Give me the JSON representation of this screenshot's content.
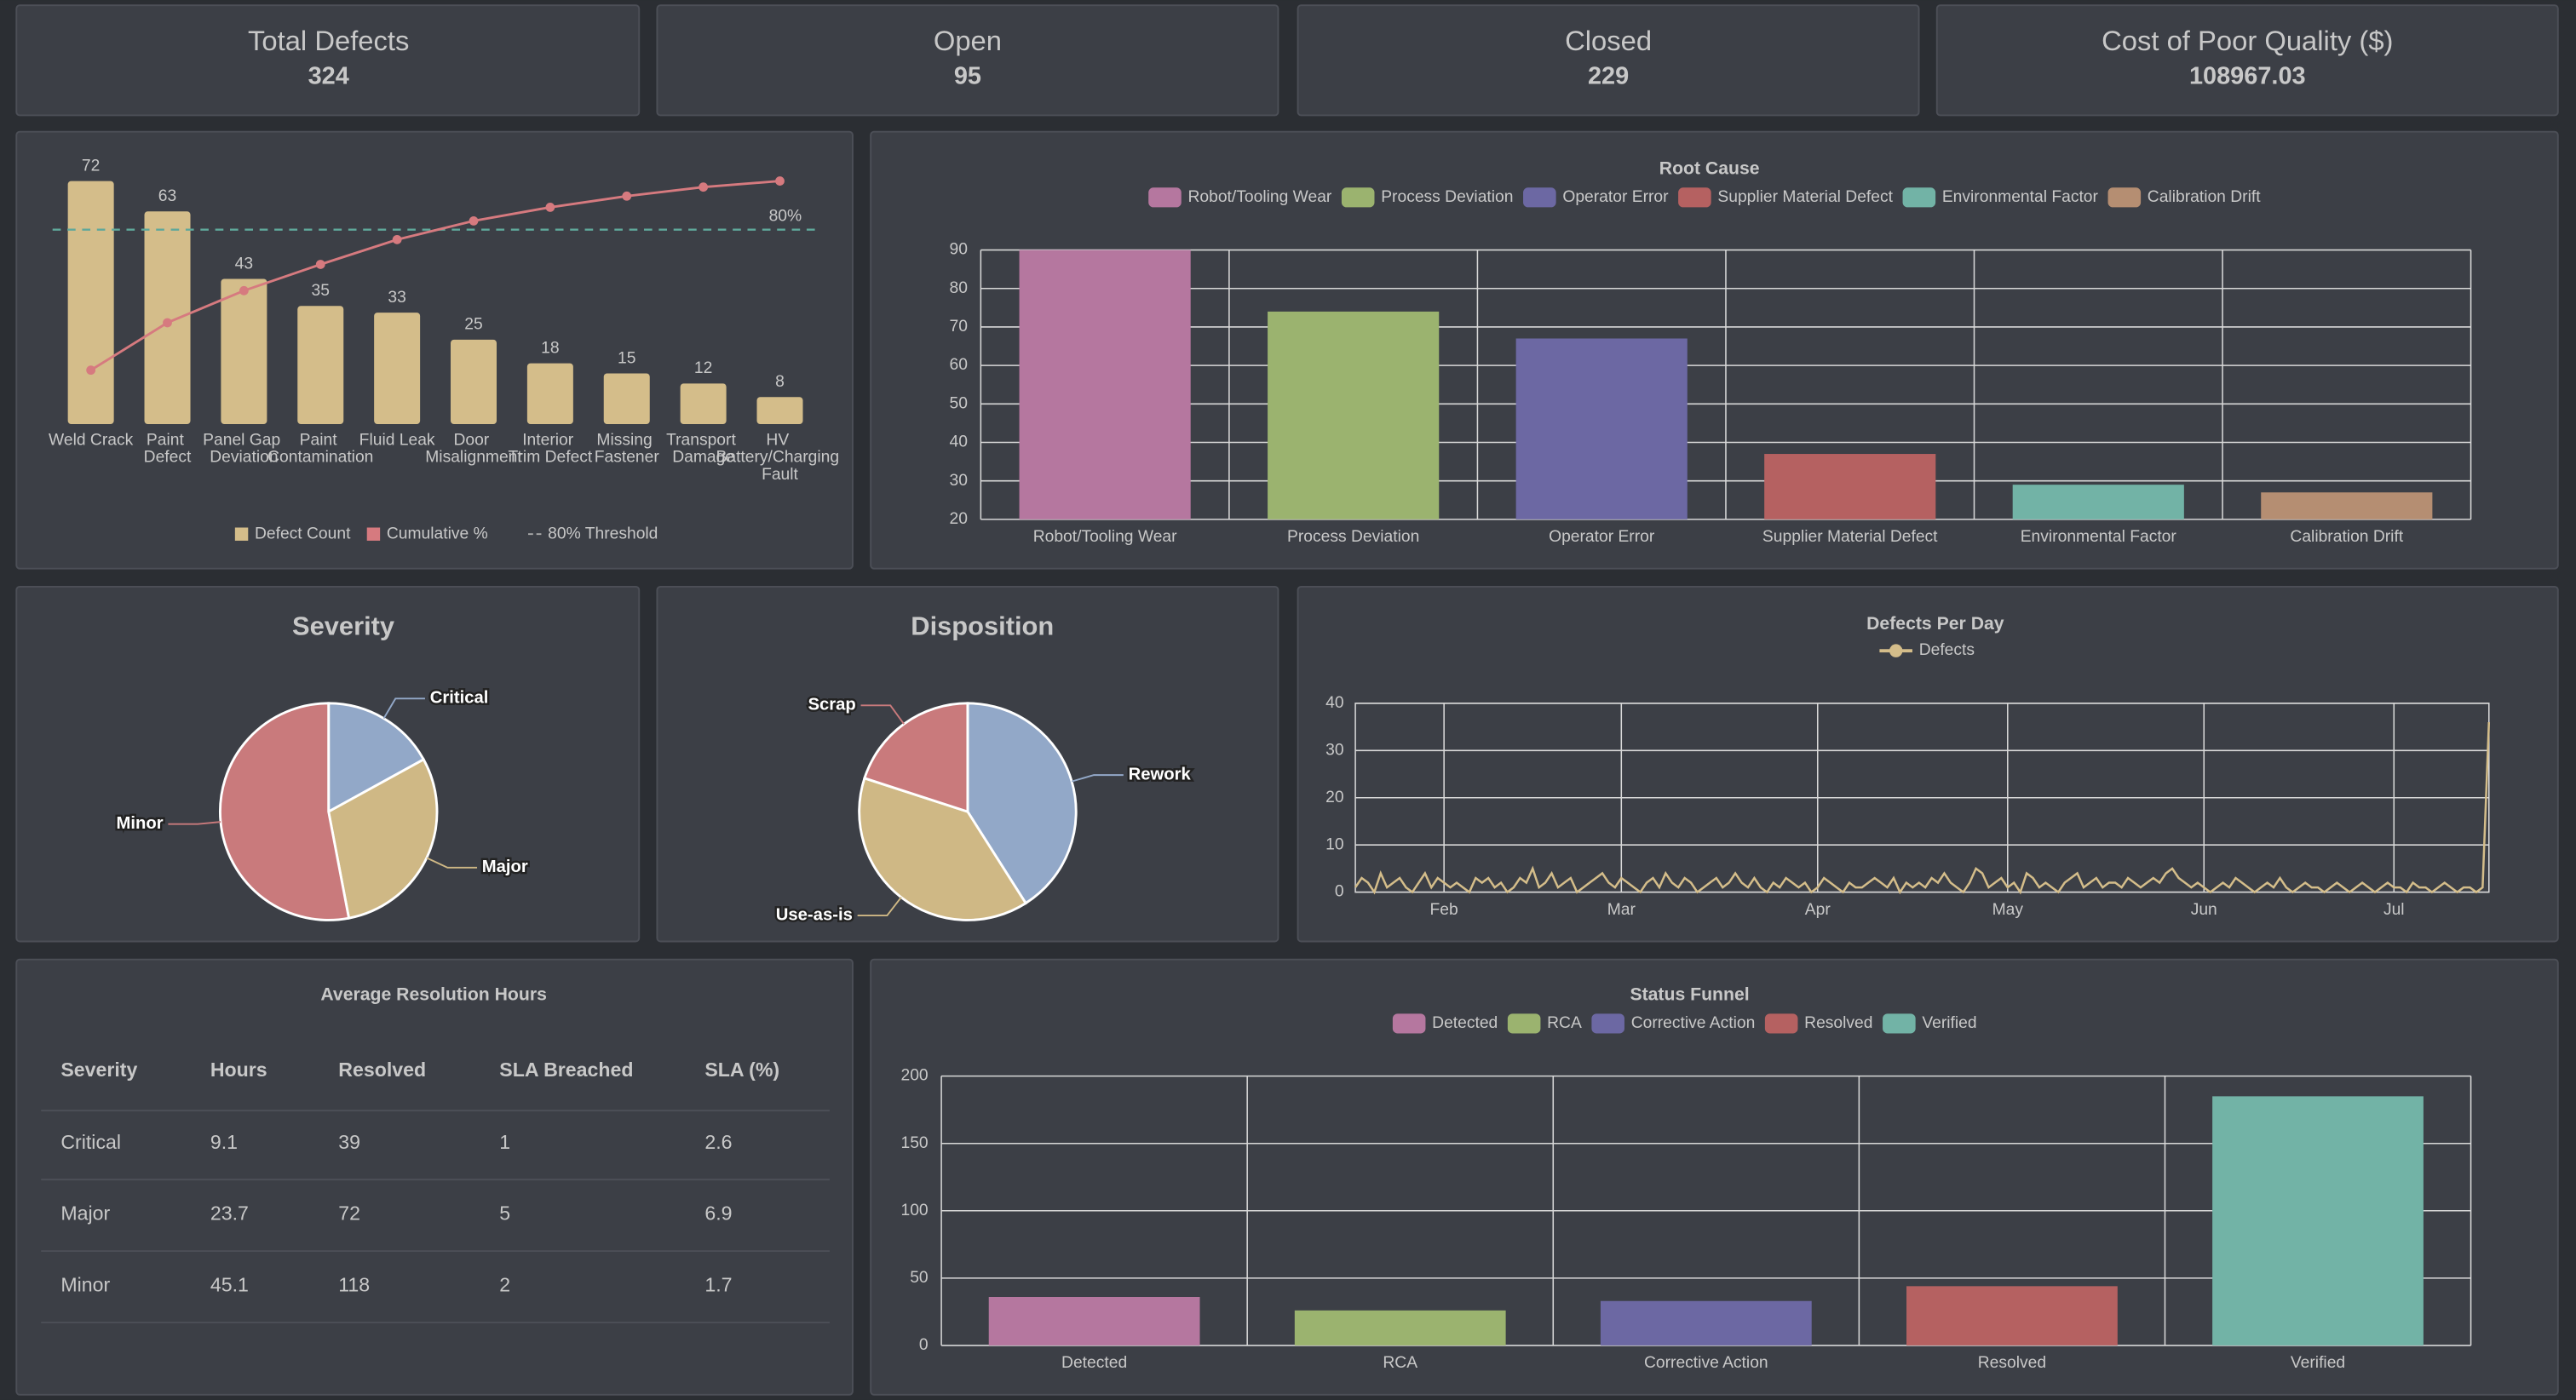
{
  "kpis": [
    {
      "label": "Total Defects",
      "value": 324
    },
    {
      "label": "Open",
      "value": 95
    },
    {
      "label": "Closed",
      "value": 229
    },
    {
      "label": "Cost of Poor Quality ($)",
      "value": 108967.03
    }
  ],
  "chart_data": [
    {
      "type": "pareto",
      "categories": [
        "Weld Crack",
        "Paint Defect",
        "Panel Gap Deviation",
        "Paint Contamination",
        "Fluid Leak",
        "Door Misalignment",
        "Interior Trim Defect",
        "Missing Fastener",
        "Transport Damage",
        "HV Battery/Charging Fault"
      ],
      "series": [
        {
          "name": "Defect Count",
          "color": "#d4bd8a",
          "values": [
            72,
            63,
            43,
            35,
            33,
            25,
            18,
            15,
            12,
            8
          ]
        },
        {
          "name": "Cumulative %",
          "color": "#d67a7f",
          "axis": "y2",
          "values": [
            22.2,
            41.7,
            54.9,
            65.7,
            75.9,
            83.6,
            89.2,
            93.8,
            97.5,
            100
          ]
        }
      ],
      "threshold": {
        "name": "80% Threshold",
        "value": 80,
        "label": "80%",
        "color": "#5fa89a"
      },
      "ylim": [
        0,
        72
      ],
      "y2lim": [
        0,
        100
      ]
    },
    {
      "type": "bar",
      "title": "Root Cause",
      "categories": [
        "Robot/Tooling Wear",
        "Process Deviation",
        "Operator Error",
        "Supplier Material Defect",
        "Environmental Factor",
        "Calibration Drift"
      ],
      "values": [
        90,
        74,
        67,
        37,
        29,
        27
      ],
      "colors": [
        "#b5779f",
        "#9bb36f",
        "#6c68a3",
        "#b56161",
        "#72b3a6",
        "#b58e72"
      ],
      "ylim": [
        20,
        90
      ],
      "yticks": [
        20,
        30,
        40,
        50,
        60,
        70,
        80,
        90
      ],
      "grid": true
    },
    {
      "type": "pie",
      "title": "Severity",
      "categories": [
        "Critical",
        "Major",
        "Minor"
      ],
      "values": [
        17,
        30,
        53
      ],
      "colors": [
        "#92a8c8",
        "#cfb885",
        "#c97a7c"
      ]
    },
    {
      "type": "pie",
      "title": "Disposition",
      "categories": [
        "Rework",
        "Use-as-is",
        "Scrap"
      ],
      "values": [
        41,
        39,
        20
      ],
      "colors": [
        "#92a8c8",
        "#cfb885",
        "#c97a7c"
      ]
    },
    {
      "type": "line",
      "title": "Defects Per Day",
      "x": [
        18,
        19,
        20,
        21,
        22,
        23,
        24,
        25,
        26,
        27,
        28,
        29,
        30,
        31,
        32,
        33,
        34,
        35,
        36,
        37,
        38,
        39,
        40,
        41,
        42,
        43,
        44,
        45,
        46,
        47,
        48,
        49,
        50,
        51,
        52,
        53,
        54,
        55,
        56,
        57,
        58,
        59,
        60,
        61,
        62,
        63,
        64,
        65,
        66,
        67,
        68,
        69,
        70,
        71,
        72,
        73,
        74,
        75,
        76,
        77,
        78,
        79,
        80,
        81,
        82,
        83,
        84,
        85,
        86,
        87,
        88,
        89,
        90,
        91,
        92,
        93,
        94,
        95,
        96,
        97,
        98,
        99,
        100,
        101,
        102,
        103,
        104,
        105,
        106,
        107,
        108,
        109,
        110,
        111,
        112,
        113,
        114,
        115,
        116,
        117,
        118,
        119,
        120,
        121,
        122,
        123,
        124,
        125,
        126,
        127,
        128,
        129,
        130,
        131,
        132,
        133,
        134,
        135,
        136,
        137,
        138,
        139,
        140,
        141,
        142,
        143,
        144,
        145,
        146,
        147,
        148,
        149,
        150,
        151,
        152,
        153,
        154,
        155,
        156,
        157,
        158,
        159,
        160,
        161,
        162,
        163,
        164,
        165,
        166,
        167,
        168,
        169,
        170,
        171,
        172,
        173,
        174,
        175,
        176,
        177,
        178,
        179,
        180,
        181,
        182,
        183,
        184,
        185,
        186,
        187,
        188,
        189,
        190,
        191,
        192,
        193,
        194,
        195,
        196,
        197
      ],
      "series": [
        {
          "name": "Defects",
          "color": "#d4bd8a",
          "values": [
            1,
            3,
            2,
            0,
            4,
            1,
            2,
            3,
            1,
            0,
            2,
            4,
            1,
            3,
            2,
            1,
            2,
            1,
            0,
            3,
            2,
            3,
            1,
            2,
            0,
            1,
            3,
            2,
            5,
            1,
            2,
            4,
            1,
            2,
            3,
            0,
            1,
            2,
            3,
            4,
            2,
            1,
            3,
            2,
            1,
            0,
            2,
            3,
            1,
            4,
            2,
            1,
            3,
            2,
            0,
            1,
            2,
            3,
            1,
            2,
            4,
            2,
            1,
            3,
            1,
            0,
            2,
            1,
            3,
            2,
            1,
            2,
            0,
            1,
            3,
            2,
            1,
            0,
            2,
            1,
            1,
            2,
            3,
            2,
            1,
            3,
            0,
            2,
            1,
            2,
            1,
            3,
            2,
            4,
            2,
            1,
            0,
            2,
            5,
            4,
            1,
            2,
            3,
            1,
            2,
            0,
            4,
            3,
            1,
            2,
            1,
            0,
            2,
            3,
            4,
            1,
            2,
            3,
            1,
            2,
            2,
            1,
            3,
            2,
            1,
            2,
            3,
            2,
            4,
            5,
            3,
            2,
            1,
            2,
            1,
            0,
            1,
            2,
            1,
            3,
            2,
            1,
            0,
            1,
            2,
            1,
            3,
            1,
            0,
            1,
            2,
            1,
            1,
            0,
            1,
            2,
            1,
            0,
            1,
            2,
            1,
            0,
            1,
            2,
            1,
            1,
            0,
            2,
            1,
            1,
            0,
            1,
            2,
            1,
            0,
            1,
            1,
            0,
            1,
            36
          ]
        }
      ],
      "xlim": [
        18,
        197
      ],
      "xticks": [
        {
          "value": 32,
          "label": "Feb"
        },
        {
          "value": 60,
          "label": "Mar"
        },
        {
          "value": 91,
          "label": "Apr"
        },
        {
          "value": 121,
          "label": "May"
        },
        {
          "value": 152,
          "label": "Jun"
        },
        {
          "value": 182,
          "label": "Jul"
        }
      ],
      "ylim": [
        0,
        40
      ],
      "yticks": [
        0,
        10,
        20,
        30,
        40
      ],
      "grid": true
    },
    {
      "type": "bar",
      "title": "Status Funnel",
      "categories": [
        "Detected",
        "RCA",
        "Corrective Action",
        "Resolved",
        "Verified"
      ],
      "values": [
        36,
        26,
        33,
        44,
        185
      ],
      "colors": [
        "#b5779f",
        "#9bb36f",
        "#6c68a3",
        "#b56161",
        "#72b3a6"
      ],
      "ylim": [
        0,
        200
      ],
      "yticks": [
        0,
        50,
        100,
        150,
        200
      ],
      "grid": true
    }
  ],
  "table": {
    "title": "Average Resolution Hours",
    "columns": [
      "Severity",
      "Hours",
      "Resolved",
      "SLA Breached",
      "SLA (%)"
    ],
    "rows": [
      [
        "Critical",
        9.1,
        39,
        1,
        2.6
      ],
      [
        "Major",
        23.7,
        72,
        5,
        6.9
      ],
      [
        "Minor",
        45.1,
        118,
        2,
        1.7
      ]
    ]
  }
}
